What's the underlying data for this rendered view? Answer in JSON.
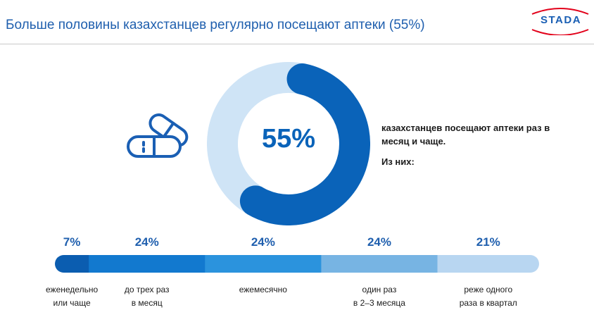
{
  "header": {
    "title": "Больше половины казахстанцев регулярно посещают аптеки (55%)",
    "logo_text": "STADA",
    "accent_color": "#1f5fae",
    "logo_color": "#1a5fb4",
    "logo_arc_color": "#e2001a"
  },
  "illustration": {
    "icon": "pills-icon",
    "color": "#1a5fb4"
  },
  "chart_data": [
    {
      "type": "pie",
      "style": "donut",
      "center_label": "55%",
      "values": [
        55,
        45
      ],
      "colors": [
        "#0a63b9",
        "#cfe4f6"
      ]
    },
    {
      "type": "bar",
      "orientation": "horizontal",
      "stacked": true,
      "categories": [
        "еженедельно\nили чаще",
        "до трех раз\nв месяц",
        "ежемесячно",
        "один раз\nв 2–3 месяца",
        "реже одного\nраза в квартал"
      ],
      "values": [
        7,
        24,
        24,
        24,
        21
      ],
      "value_labels": [
        "7%",
        "24%",
        "24%",
        "24%",
        "21%"
      ],
      "colors": [
        "#0b5db0",
        "#1279cf",
        "#2b93dd",
        "#77b4e3",
        "#b8d6f1"
      ]
    }
  ],
  "text": {
    "caption": "казахстанцев посещают аптеки раз в месяц и чаще.",
    "subcaption": "Из них:"
  }
}
